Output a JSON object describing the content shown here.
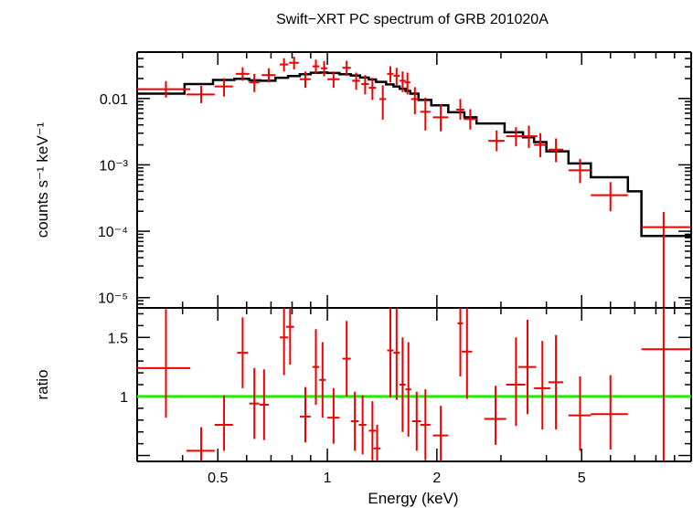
{
  "chart_data": [
    {
      "panel": "spectrum",
      "type": "scatter",
      "title": "Swift−XRT PC spectrum of GRB 201020A",
      "xlabel": "Energy (keV)",
      "ylabel": "counts s⁻¹ keV⁻¹",
      "xscale": "log",
      "yscale": "log",
      "xlim": [
        0.3,
        10.0
      ],
      "ylim": [
        7e-06,
        0.05
      ],
      "y_ticks": [
        {
          "value": 0.01,
          "label": "0.01"
        },
        {
          "value": 0.001,
          "label": "10⁻³"
        },
        {
          "value": 0.0001,
          "label": "10⁻⁴"
        },
        {
          "value": 1e-05,
          "label": "10⁻⁵"
        }
      ],
      "data": [
        {
          "x": 0.36,
          "xerr": [
            0.06,
            0.06
          ],
          "y": 0.0138,
          "yerr": [
            0.0035,
            0.0045
          ]
        },
        {
          "x": 0.45,
          "xerr": [
            0.04,
            0.04
          ],
          "y": 0.0115,
          "yerr": [
            0.003,
            0.004
          ]
        },
        {
          "x": 0.52,
          "xerr": [
            0.03,
            0.03
          ],
          "y": 0.0152,
          "yerr": [
            0.0045,
            0.005
          ]
        },
        {
          "x": 0.585,
          "xerr": [
            0.025,
            0.025
          ],
          "y": 0.0235,
          "yerr": [
            0.005,
            0.006
          ]
        },
        {
          "x": 0.63,
          "xerr": [
            0.02,
            0.02
          ],
          "y": 0.0175,
          "yerr": [
            0.005,
            0.006
          ]
        },
        {
          "x": 0.69,
          "xerr": [
            0.03,
            0.03
          ],
          "y": 0.0225,
          "yerr": [
            0.005,
            0.006
          ]
        },
        {
          "x": 0.76,
          "xerr": [
            0.02,
            0.02
          ],
          "y": 0.0325,
          "yerr": [
            0.007,
            0.008
          ]
        },
        {
          "x": 0.81,
          "xerr": [
            0.025,
            0.025
          ],
          "y": 0.0345,
          "yerr": [
            0.007,
            0.008
          ]
        },
        {
          "x": 0.87,
          "xerr": [
            0.03,
            0.03
          ],
          "y": 0.0195,
          "yerr": [
            0.005,
            0.006
          ]
        },
        {
          "x": 0.93,
          "xerr": [
            0.02,
            0.02
          ],
          "y": 0.0305,
          "yerr": [
            0.007,
            0.008
          ]
        },
        {
          "x": 0.98,
          "xerr": [
            0.02,
            0.02
          ],
          "y": 0.0285,
          "yerr": [
            0.007,
            0.008
          ]
        },
        {
          "x": 1.04,
          "xerr": [
            0.04,
            0.04
          ],
          "y": 0.0195,
          "yerr": [
            0.005,
            0.006
          ]
        },
        {
          "x": 1.13,
          "xerr": [
            0.03,
            0.03
          ],
          "y": 0.029,
          "yerr": [
            0.007,
            0.008
          ]
        },
        {
          "x": 1.2,
          "xerr": [
            0.03,
            0.03
          ],
          "y": 0.0185,
          "yerr": [
            0.005,
            0.006
          ]
        },
        {
          "x": 1.27,
          "xerr": [
            0.03,
            0.03
          ],
          "y": 0.0165,
          "yerr": [
            0.005,
            0.006
          ]
        },
        {
          "x": 1.33,
          "xerr": [
            0.03,
            0.03
          ],
          "y": 0.0145,
          "yerr": [
            0.005,
            0.006
          ]
        },
        {
          "x": 1.42,
          "xerr": [
            0.03,
            0.03
          ],
          "y": 0.0098,
          "yerr": [
            0.005,
            0.006
          ]
        },
        {
          "x": 1.49,
          "xerr": [
            0.03,
            0.03
          ],
          "y": 0.0235,
          "yerr": [
            0.006,
            0.007
          ]
        },
        {
          "x": 1.55,
          "xerr": [
            0.03,
            0.03
          ],
          "y": 0.022,
          "yerr": [
            0.006,
            0.007
          ]
        },
        {
          "x": 1.61,
          "xerr": [
            0.03,
            0.03
          ],
          "y": 0.0185,
          "yerr": [
            0.006,
            0.007
          ]
        },
        {
          "x": 1.66,
          "xerr": [
            0.03,
            0.03
          ],
          "y": 0.0175,
          "yerr": [
            0.006,
            0.007
          ]
        },
        {
          "x": 1.74,
          "xerr": [
            0.04,
            0.04
          ],
          "y": 0.0098,
          "yerr": [
            0.004,
            0.005
          ]
        },
        {
          "x": 1.86,
          "xerr": [
            0.06,
            0.06
          ],
          "y": 0.0063,
          "yerr": [
            0.003,
            0.004
          ]
        },
        {
          "x": 2.05,
          "xerr": [
            0.1,
            0.1
          ],
          "y": 0.0052,
          "yerr": [
            0.002,
            0.003
          ]
        },
        {
          "x": 2.32,
          "xerr": [
            0.06,
            0.06
          ],
          "y": 0.0068,
          "yerr": [
            0.002,
            0.003
          ]
        },
        {
          "x": 2.47,
          "xerr": [
            0.1,
            0.1
          ],
          "y": 0.0049,
          "yerr": [
            0.0015,
            0.002
          ]
        },
        {
          "x": 2.92,
          "xerr": [
            0.15,
            0.15
          ],
          "y": 0.0023,
          "yerr": [
            0.0007,
            0.001
          ]
        },
        {
          "x": 3.3,
          "xerr": [
            0.2,
            0.2
          ],
          "y": 0.0027,
          "yerr": [
            0.0008,
            0.001
          ]
        },
        {
          "x": 3.58,
          "xerr": [
            0.2,
            0.2
          ],
          "y": 0.0027,
          "yerr": [
            0.0009,
            0.0012
          ]
        },
        {
          "x": 3.85,
          "xerr": [
            0.15,
            0.15
          ],
          "y": 0.002,
          "yerr": [
            0.0007,
            0.001
          ]
        },
        {
          "x": 4.25,
          "xerr": [
            0.2,
            0.2
          ],
          "y": 0.0017,
          "yerr": [
            0.0006,
            0.0008
          ]
        },
        {
          "x": 4.95,
          "xerr": [
            0.35,
            0.35
          ],
          "y": 0.00083,
          "yerr": [
            0.0003,
            0.0004
          ]
        },
        {
          "x": 6.0,
          "xerr": [
            0.7,
            0.7
          ],
          "y": 0.00035,
          "yerr": [
            0.00015,
            0.0002
          ]
        },
        {
          "x": 8.4,
          "xerr": [
            1.1,
            1.6
          ],
          "y": 0.000115,
          "yerr": [
            0.000108,
            8e-05
          ]
        }
      ],
      "model": [
        {
          "from": 0.3,
          "to": 0.405,
          "y": 0.0118
        },
        {
          "from": 0.405,
          "to": 0.485,
          "y": 0.0165
        },
        {
          "from": 0.485,
          "to": 0.555,
          "y": 0.019
        },
        {
          "from": 0.555,
          "to": 0.61,
          "y": 0.0198
        },
        {
          "from": 0.61,
          "to": 0.655,
          "y": 0.0188
        },
        {
          "from": 0.655,
          "to": 0.72,
          "y": 0.0185
        },
        {
          "from": 0.72,
          "to": 0.78,
          "y": 0.0205
        },
        {
          "from": 0.78,
          "to": 0.84,
          "y": 0.0218
        },
        {
          "from": 0.84,
          "to": 0.9,
          "y": 0.0232
        },
        {
          "from": 0.9,
          "to": 0.955,
          "y": 0.0244
        },
        {
          "from": 0.955,
          "to": 1.0,
          "y": 0.0246
        },
        {
          "from": 1.0,
          "to": 1.08,
          "y": 0.0242
        },
        {
          "from": 1.08,
          "to": 1.16,
          "y": 0.0232
        },
        {
          "from": 1.16,
          "to": 1.23,
          "y": 0.0222
        },
        {
          "from": 1.23,
          "to": 1.3,
          "y": 0.0207
        },
        {
          "from": 1.3,
          "to": 1.36,
          "y": 0.0193
        },
        {
          "from": 1.36,
          "to": 1.45,
          "y": 0.0178
        },
        {
          "from": 1.45,
          "to": 1.52,
          "y": 0.0163
        },
        {
          "from": 1.52,
          "to": 1.58,
          "y": 0.0152
        },
        {
          "from": 1.58,
          "to": 1.64,
          "y": 0.014
        },
        {
          "from": 1.64,
          "to": 1.69,
          "y": 0.013
        },
        {
          "from": 1.69,
          "to": 1.78,
          "y": 0.0118
        },
        {
          "from": 1.78,
          "to": 1.93,
          "y": 0.0095
        },
        {
          "from": 1.93,
          "to": 2.15,
          "y": 0.0079
        },
        {
          "from": 2.15,
          "to": 2.38,
          "y": 0.0062
        },
        {
          "from": 2.38,
          "to": 2.57,
          "y": 0.0052
        },
        {
          "from": 2.57,
          "to": 3.07,
          "y": 0.0042
        },
        {
          "from": 3.07,
          "to": 3.45,
          "y": 0.0031
        },
        {
          "from": 3.45,
          "to": 3.7,
          "y": 0.0026
        },
        {
          "from": 3.7,
          "to": 4.0,
          "y": 0.0022
        },
        {
          "from": 4.0,
          "to": 4.6,
          "y": 0.0016
        },
        {
          "from": 4.6,
          "to": 5.3,
          "y": 0.00105
        },
        {
          "from": 5.3,
          "to": 6.7,
          "y": 0.00065
        },
        {
          "from": 6.7,
          "to": 7.3,
          "y": 0.0004
        },
        {
          "from": 7.3,
          "to": 10.0,
          "y": 8.5e-05
        }
      ]
    },
    {
      "panel": "ratio",
      "type": "scatter",
      "xlabel": "Energy (keV)",
      "ylabel": "ratio",
      "xscale": "log",
      "xlim": [
        0.3,
        10.0
      ],
      "ylim": [
        0.45,
        1.75
      ],
      "reference_line": 1.0,
      "x_ticks": [
        {
          "value": 0.5,
          "label": "0.5"
        },
        {
          "value": 1,
          "label": "1"
        },
        {
          "value": 2,
          "label": "2"
        },
        {
          "value": 5,
          "label": "5"
        }
      ],
      "y_ticks": [
        {
          "value": 1.5,
          "label": "1.5"
        },
        {
          "value": 1,
          "label": "1"
        }
      ],
      "data": [
        {
          "x": 0.36,
          "xerr": [
            0.06,
            0.06
          ],
          "y": 1.24,
          "yerr": [
            0.42,
            0.5
          ]
        },
        {
          "x": 0.45,
          "xerr": [
            0.04,
            0.04
          ],
          "y": 0.54,
          "yerr": [
            0.1,
            0.2
          ]
        },
        {
          "x": 0.52,
          "xerr": [
            0.03,
            0.03
          ],
          "y": 0.76,
          "yerr": [
            0.22,
            0.25
          ]
        },
        {
          "x": 0.585,
          "xerr": [
            0.02,
            0.02
          ],
          "y": 1.37,
          "yerr": [
            0.3,
            0.3
          ]
        },
        {
          "x": 0.63,
          "xerr": [
            0.02,
            0.02
          ],
          "y": 0.94,
          "yerr": [
            0.3,
            0.3
          ]
        },
        {
          "x": 0.67,
          "xerr": [
            0.02,
            0.02
          ],
          "y": 0.93,
          "yerr": [
            0.3,
            0.3
          ]
        },
        {
          "x": 0.76,
          "xerr": [
            0.02,
            0.02
          ],
          "y": 1.5,
          "yerr": [
            0.32,
            0.32
          ]
        },
        {
          "x": 0.79,
          "xerr": [
            0.02,
            0.02
          ],
          "y": 1.59,
          "yerr": [
            0.32,
            0.32
          ]
        },
        {
          "x": 0.87,
          "xerr": [
            0.03,
            0.03
          ],
          "y": 0.83,
          "yerr": [
            0.22,
            0.25
          ]
        },
        {
          "x": 0.93,
          "xerr": [
            0.02,
            0.02
          ],
          "y": 1.25,
          "yerr": [
            0.32,
            0.32
          ]
        },
        {
          "x": 0.97,
          "xerr": [
            0.02,
            0.02
          ],
          "y": 1.14,
          "yerr": [
            0.32,
            0.32
          ]
        },
        {
          "x": 1.04,
          "xerr": [
            0.04,
            0.04
          ],
          "y": 0.82,
          "yerr": [
            0.22,
            0.25
          ]
        },
        {
          "x": 1.13,
          "xerr": [
            0.03,
            0.03
          ],
          "y": 1.32,
          "yerr": [
            0.32,
            0.32
          ]
        },
        {
          "x": 1.19,
          "xerr": [
            0.03,
            0.03
          ],
          "y": 0.79,
          "yerr": [
            0.25,
            0.25
          ]
        },
        {
          "x": 1.25,
          "xerr": [
            0.03,
            0.03
          ],
          "y": 0.76,
          "yerr": [
            0.25,
            0.25
          ]
        },
        {
          "x": 1.33,
          "xerr": [
            0.03,
            0.03
          ],
          "y": 0.71,
          "yerr": [
            0.25,
            0.25
          ]
        },
        {
          "x": 1.37,
          "xerr": [
            0.03,
            0.03
          ],
          "y": 0.56,
          "yerr": [
            0.2,
            0.2
          ]
        },
        {
          "x": 1.49,
          "xerr": [
            0.03,
            0.03
          ],
          "y": 1.39,
          "yerr": [
            0.4,
            0.4
          ]
        },
        {
          "x": 1.55,
          "xerr": [
            0.03,
            0.03
          ],
          "y": 1.37,
          "yerr": [
            0.4,
            0.4
          ]
        },
        {
          "x": 1.61,
          "xerr": [
            0.03,
            0.03
          ],
          "y": 1.1,
          "yerr": [
            0.4,
            0.4
          ]
        },
        {
          "x": 1.67,
          "xerr": [
            0.03,
            0.03
          ],
          "y": 1.06,
          "yerr": [
            0.4,
            0.4
          ]
        },
        {
          "x": 1.76,
          "xerr": [
            0.05,
            0.05
          ],
          "y": 0.79,
          "yerr": [
            0.25,
            0.25
          ]
        },
        {
          "x": 1.86,
          "xerr": [
            0.06,
            0.06
          ],
          "y": 0.76,
          "yerr": [
            0.3,
            0.3
          ]
        },
        {
          "x": 2.05,
          "xerr": [
            0.1,
            0.1
          ],
          "y": 0.67,
          "yerr": [
            0.25,
            0.25
          ]
        },
        {
          "x": 2.32,
          "xerr": [
            0.04,
            0.04
          ],
          "y": 1.62,
          "yerr": [
            0.45,
            0.45
          ]
        },
        {
          "x": 2.42,
          "xerr": [
            0.08,
            0.08
          ],
          "y": 1.38,
          "yerr": [
            0.4,
            0.4
          ]
        },
        {
          "x": 2.9,
          "xerr": [
            0.2,
            0.2
          ],
          "y": 0.81,
          "yerr": [
            0.22,
            0.28
          ]
        },
        {
          "x": 3.3,
          "xerr": [
            0.2,
            0.2
          ],
          "y": 1.1,
          "yerr": [
            0.35,
            0.4
          ]
        },
        {
          "x": 3.55,
          "xerr": [
            0.2,
            0.2
          ],
          "y": 1.25,
          "yerr": [
            0.4,
            0.4
          ]
        },
        {
          "x": 3.9,
          "xerr": [
            0.2,
            0.2
          ],
          "y": 1.07,
          "yerr": [
            0.35,
            0.4
          ]
        },
        {
          "x": 4.25,
          "xerr": [
            0.2,
            0.2
          ],
          "y": 1.12,
          "yerr": [
            0.4,
            0.4
          ]
        },
        {
          "x": 4.95,
          "xerr": [
            0.35,
            0.35
          ],
          "y": 0.84,
          "yerr": [
            0.3,
            0.33
          ]
        },
        {
          "x": 6.0,
          "xerr": [
            0.7,
            0.7
          ],
          "y": 0.85,
          "yerr": [
            0.3,
            0.33
          ]
        },
        {
          "x": 8.4,
          "xerr": [
            1.1,
            1.6
          ],
          "y": 1.4,
          "yerr": [
            0.95,
            0.35
          ]
        }
      ]
    }
  ],
  "colors": {
    "data": "#ee0000",
    "model": "#000000",
    "reference": "#22ee00"
  }
}
